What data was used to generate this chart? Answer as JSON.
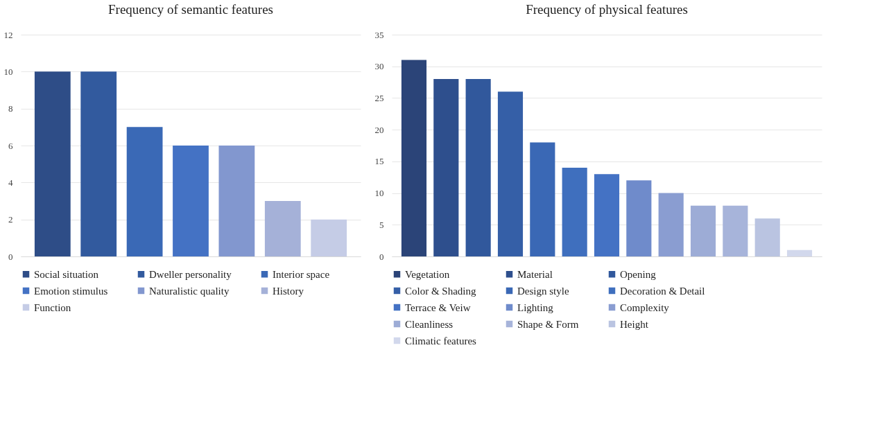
{
  "chart_data": [
    {
      "type": "bar",
      "title": "Frequency of semantic features",
      "categories": [
        null,
        null,
        null,
        null,
        null,
        null,
        null
      ],
      "series": [
        {
          "name": "Social situation",
          "color": "#2e4d87",
          "values": [
            10,
            null,
            null,
            null,
            null,
            null,
            null
          ]
        },
        {
          "name": "Dweller personality",
          "color": "#325a9e",
          "values": [
            null,
            10,
            null,
            null,
            null,
            null,
            null
          ]
        },
        {
          "name": "Interior space",
          "color": "#3a69b6",
          "values": [
            null,
            null,
            7,
            null,
            null,
            null,
            null
          ]
        },
        {
          "name": "Emotion stimulus",
          "color": "#4472c4",
          "values": [
            null,
            null,
            null,
            6,
            null,
            null,
            null
          ]
        },
        {
          "name": "Naturalistic quality",
          "color": "#8297cf",
          "values": [
            null,
            null,
            null,
            null,
            6,
            null,
            null
          ]
        },
        {
          "name": "History",
          "color": "#a5b1d8",
          "values": [
            null,
            null,
            null,
            null,
            null,
            3,
            null
          ]
        },
        {
          "name": "Function",
          "color": "#c5cce6",
          "values": [
            null,
            null,
            null,
            null,
            null,
            null,
            2
          ]
        }
      ],
      "ylim": [
        0,
        12
      ],
      "yticks": [
        0,
        2,
        4,
        6,
        8,
        10,
        12
      ],
      "grid": "y",
      "legend": "bottom",
      "tick_labels": "y"
    },
    {
      "type": "bar",
      "title": "Frequency of physical features",
      "categories": [
        null,
        null,
        null,
        null,
        null,
        null,
        null,
        null,
        null,
        null,
        null,
        null,
        null
      ],
      "series": [
        {
          "name": "Vegetation",
          "color": "#2b4478",
          "values": [
            31,
            null,
            null,
            null,
            null,
            null,
            null,
            null,
            null,
            null,
            null,
            null,
            null
          ]
        },
        {
          "name": "Material",
          "color": "#2e4f8d",
          "values": [
            null,
            28,
            null,
            null,
            null,
            null,
            null,
            null,
            null,
            null,
            null,
            null,
            null
          ]
        },
        {
          "name": "Opening",
          "color": "#31589c",
          "values": [
            null,
            null,
            28,
            null,
            null,
            null,
            null,
            null,
            null,
            null,
            null,
            null,
            null
          ]
        },
        {
          "name": "Color & Shading",
          "color": "#355fa7",
          "values": [
            null,
            null,
            null,
            26,
            null,
            null,
            null,
            null,
            null,
            null,
            null,
            null,
            null
          ]
        },
        {
          "name": "Design style",
          "color": "#3a68b5",
          "values": [
            null,
            null,
            null,
            null,
            18,
            null,
            null,
            null,
            null,
            null,
            null,
            null,
            null
          ]
        },
        {
          "name": "Decoration & Detail",
          "color": "#3f6fbe",
          "values": [
            null,
            null,
            null,
            null,
            null,
            14,
            null,
            null,
            null,
            null,
            null,
            null,
            null
          ]
        },
        {
          "name": "Terrace & Veiw",
          "color": "#4472c4",
          "values": [
            null,
            null,
            null,
            null,
            null,
            null,
            13,
            null,
            null,
            null,
            null,
            null,
            null
          ]
        },
        {
          "name": "Lighting",
          "color": "#6f8bcb",
          "values": [
            null,
            null,
            null,
            null,
            null,
            null,
            null,
            12,
            null,
            null,
            null,
            null,
            null
          ]
        },
        {
          "name": "Complexity",
          "color": "#8a9dd1",
          "values": [
            null,
            null,
            null,
            null,
            null,
            null,
            null,
            null,
            10,
            null,
            null,
            null,
            null
          ]
        },
        {
          "name": "Cleanliness",
          "color": "#9dacd6",
          "values": [
            null,
            null,
            null,
            null,
            null,
            null,
            null,
            null,
            null,
            8,
            null,
            null,
            null
          ]
        },
        {
          "name": "Shape & Form",
          "color": "#a7b4da",
          "values": [
            null,
            null,
            null,
            null,
            null,
            null,
            null,
            null,
            null,
            null,
            8,
            null,
            null
          ]
        },
        {
          "name": "Height",
          "color": "#bac4e1",
          "values": [
            null,
            null,
            null,
            null,
            null,
            null,
            null,
            null,
            null,
            null,
            null,
            6,
            null
          ]
        },
        {
          "name": "Climatic features",
          "color": "#d2d8ec",
          "values": [
            null,
            null,
            null,
            null,
            null,
            null,
            null,
            null,
            null,
            null,
            null,
            null,
            1
          ]
        }
      ],
      "ylim": [
        0,
        35
      ],
      "yticks": [
        0,
        5,
        10,
        15,
        20,
        25,
        30,
        35
      ],
      "grid": "y",
      "legend": "bottom",
      "tick_labels": "y"
    }
  ]
}
